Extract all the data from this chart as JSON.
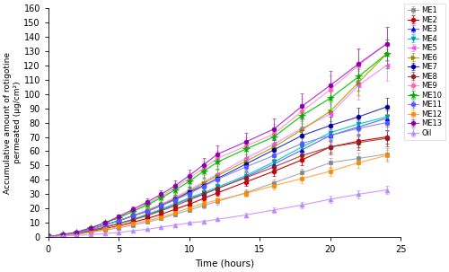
{
  "time_points": [
    0,
    1,
    2,
    3,
    4,
    5,
    6,
    7,
    8,
    9,
    10,
    11,
    12,
    14,
    16,
    18,
    20,
    22,
    24
  ],
  "series": {
    "ME1": {
      "color": "#888888",
      "marker": "s",
      "lc": "#aaaaaa",
      "values": [
        0.5,
        1.2,
        2.0,
        3.5,
        5.0,
        6.5,
        8.5,
        10.5,
        13.0,
        16.0,
        19.0,
        22.0,
        25.0,
        31.0,
        38.0,
        45.0,
        52.0,
        55.0,
        58.0
      ],
      "errors": [
        0.2,
        0.3,
        0.3,
        0.4,
        0.5,
        0.6,
        0.7,
        0.8,
        1.0,
        1.2,
        1.4,
        1.6,
        2.0,
        2.2,
        2.5,
        3.0,
        3.5,
        3.8,
        4.0
      ]
    },
    "ME2": {
      "color": "#cc0000",
      "marker": "o",
      "lc": "#cc0000",
      "values": [
        0.5,
        1.3,
        2.2,
        4.0,
        6.0,
        8.0,
        10.5,
        13.0,
        16.0,
        19.5,
        23.0,
        27.0,
        31.0,
        38.5,
        46.0,
        54.0,
        63.0,
        67.0,
        70.0
      ],
      "errors": [
        0.2,
        0.3,
        0.4,
        0.5,
        0.6,
        0.7,
        0.9,
        1.0,
        1.2,
        1.5,
        1.8,
        2.0,
        2.2,
        2.8,
        3.0,
        3.5,
        4.0,
        4.5,
        5.0
      ]
    },
    "ME3": {
      "color": "#0000dd",
      "marker": "^",
      "lc": "#6666ff",
      "values": [
        0.5,
        1.5,
        2.5,
        4.5,
        7.0,
        9.5,
        12.5,
        15.5,
        19.0,
        23.0,
        27.0,
        30.0,
        34.0,
        42.0,
        51.0,
        61.0,
        71.0,
        77.0,
        83.0
      ],
      "errors": [
        0.2,
        0.3,
        0.4,
        0.5,
        0.7,
        0.8,
        1.0,
        1.2,
        1.5,
        1.8,
        2.0,
        2.3,
        2.5,
        3.0,
        3.5,
        4.0,
        4.5,
        5.0,
        5.5
      ]
    },
    "ME4": {
      "color": "#009999",
      "marker": "v",
      "lc": "#00cccc",
      "values": [
        0.5,
        1.5,
        2.5,
        4.5,
        7.0,
        9.5,
        12.5,
        16.0,
        19.5,
        23.5,
        27.5,
        31.0,
        35.0,
        43.0,
        52.5,
        63.0,
        73.0,
        79.0,
        84.0
      ],
      "errors": [
        0.2,
        0.3,
        0.4,
        0.5,
        0.7,
        0.8,
        1.0,
        1.2,
        1.5,
        1.8,
        2.0,
        2.3,
        2.6,
        3.0,
        3.5,
        4.2,
        4.8,
        5.2,
        5.5
      ]
    },
    "ME5": {
      "color": "#ff44ff",
      "marker": "<",
      "lc": "#ff88ff",
      "values": [
        0.5,
        1.5,
        3.0,
        5.5,
        8.5,
        11.5,
        15.0,
        19.0,
        23.0,
        28.0,
        33.0,
        38.5,
        44.0,
        55.0,
        65.0,
        76.0,
        86.0,
        106.0,
        120.0
      ],
      "errors": [
        0.2,
        0.3,
        0.5,
        0.7,
        0.9,
        1.2,
        1.5,
        1.8,
        2.2,
        2.5,
        3.0,
        3.5,
        4.0,
        5.0,
        6.0,
        7.0,
        8.0,
        10.0,
        11.0
      ]
    },
    "ME6": {
      "color": "#888800",
      "marker": ">",
      "lc": "#aaaa00",
      "values": [
        0.5,
        1.5,
        3.0,
        5.5,
        8.5,
        11.5,
        15.0,
        18.5,
        22.5,
        27.0,
        32.0,
        37.5,
        43.0,
        53.0,
        63.0,
        75.0,
        88.0,
        108.0,
        128.0
      ],
      "errors": [
        0.2,
        0.3,
        0.5,
        0.7,
        0.9,
        1.2,
        1.5,
        1.8,
        2.0,
        2.5,
        3.0,
        3.5,
        4.0,
        4.5,
        5.0,
        6.0,
        7.0,
        9.0,
        10.0
      ]
    },
    "ME7": {
      "color": "#000099",
      "marker": "o",
      "lc": "#3333bb",
      "values": [
        0.5,
        1.5,
        3.0,
        5.5,
        8.5,
        11.5,
        15.0,
        18.0,
        22.0,
        26.5,
        31.5,
        36.0,
        41.0,
        51.0,
        61.0,
        71.0,
        78.0,
        84.0,
        91.0
      ],
      "errors": [
        0.2,
        0.3,
        0.5,
        0.7,
        0.9,
        1.2,
        1.4,
        1.7,
        2.0,
        2.4,
        2.8,
        3.2,
        3.6,
        4.2,
        4.8,
        5.5,
        6.0,
        6.2,
        6.5
      ]
    },
    "ME8": {
      "color": "#882222",
      "marker": "o",
      "lc": "#aa4444",
      "values": [
        0.5,
        1.3,
        2.5,
        4.5,
        7.0,
        9.5,
        12.0,
        15.0,
        18.5,
        22.0,
        26.0,
        30.0,
        34.0,
        41.5,
        49.0,
        57.0,
        63.0,
        66.0,
        69.0
      ],
      "errors": [
        0.2,
        0.3,
        0.4,
        0.6,
        0.8,
        1.0,
        1.2,
        1.5,
        1.8,
        2.0,
        2.3,
        2.7,
        3.0,
        3.5,
        4.0,
        4.5,
        5.0,
        5.2,
        5.5
      ]
    },
    "ME9": {
      "color": "#ff66aa",
      "marker": "o",
      "lc": "#ff99cc",
      "values": [
        0.5,
        1.8,
        3.5,
        6.5,
        10.0,
        14.0,
        18.5,
        23.5,
        28.5,
        34.5,
        41.0,
        48.0,
        55.0,
        63.5,
        72.0,
        88.0,
        103.0,
        120.0,
        135.0
      ],
      "errors": [
        0.2,
        0.4,
        0.6,
        0.9,
        1.2,
        1.5,
        1.9,
        2.3,
        2.8,
        3.4,
        4.0,
        4.7,
        5.5,
        6.0,
        7.0,
        8.5,
        10.0,
        11.0,
        12.0
      ]
    },
    "ME10": {
      "color": "#00aa00",
      "marker": "*",
      "lc": "#00cc00",
      "values": [
        0.5,
        1.8,
        3.5,
        6.5,
        10.0,
        13.5,
        18.0,
        22.5,
        27.5,
        33.0,
        39.0,
        46.0,
        52.5,
        61.5,
        70.0,
        85.0,
        97.0,
        112.0,
        128.0
      ],
      "errors": [
        0.2,
        0.4,
        0.6,
        0.9,
        1.2,
        1.5,
        1.9,
        2.3,
        2.8,
        3.2,
        3.8,
        4.5,
        5.0,
        5.5,
        6.0,
        7.5,
        8.5,
        9.5,
        10.0
      ]
    },
    "ME11": {
      "color": "#5555ff",
      "marker": "o",
      "lc": "#8888ff",
      "values": [
        0.5,
        1.5,
        3.0,
        5.5,
        8.5,
        11.5,
        15.0,
        18.0,
        22.0,
        26.0,
        30.5,
        35.5,
        40.5,
        49.0,
        57.0,
        65.5,
        71.0,
        76.0,
        80.0
      ],
      "errors": [
        0.2,
        0.3,
        0.5,
        0.7,
        0.9,
        1.1,
        1.4,
        1.7,
        2.0,
        2.3,
        2.7,
        3.1,
        3.6,
        4.0,
        4.5,
        5.0,
        5.5,
        5.8,
        6.0
      ]
    },
    "ME12": {
      "color": "#ff8800",
      "marker": "s",
      "lc": "#ffaa44",
      "values": [
        0.5,
        1.2,
        2.0,
        3.5,
        5.5,
        7.5,
        9.5,
        11.5,
        14.0,
        17.0,
        20.5,
        23.5,
        26.0,
        30.5,
        36.0,
        41.0,
        46.0,
        52.0,
        57.0
      ],
      "errors": [
        0.2,
        0.3,
        0.3,
        0.4,
        0.5,
        0.6,
        0.8,
        0.9,
        1.1,
        1.3,
        1.6,
        1.8,
        2.0,
        2.3,
        2.6,
        3.0,
        3.3,
        3.7,
        4.0
      ]
    },
    "ME13": {
      "color": "#8800aa",
      "marker": "o",
      "lc": "#aa33cc",
      "values": [
        0.5,
        1.8,
        3.5,
        6.5,
        10.0,
        14.5,
        19.5,
        24.5,
        30.0,
        36.0,
        43.0,
        50.5,
        58.0,
        66.5,
        75.5,
        91.5,
        106.0,
        121.0,
        135.0
      ],
      "errors": [
        0.2,
        0.4,
        0.6,
        0.9,
        1.2,
        1.6,
        2.0,
        2.5,
        3.0,
        3.6,
        4.3,
        5.0,
        5.8,
        6.5,
        7.5,
        9.0,
        10.0,
        11.0,
        11.5
      ]
    },
    "Oil": {
      "color": "#bb88ff",
      "marker": "^",
      "lc": "#cc99ff",
      "values": [
        0.5,
        0.8,
        1.2,
        1.8,
        2.5,
        3.3,
        4.5,
        5.5,
        7.0,
        8.5,
        10.0,
        11.0,
        12.5,
        15.5,
        19.0,
        22.5,
        26.5,
        30.0,
        33.0
      ],
      "errors": [
        0.1,
        0.2,
        0.2,
        0.3,
        0.3,
        0.4,
        0.5,
        0.6,
        0.7,
        0.8,
        0.9,
        1.0,
        1.1,
        1.4,
        1.7,
        2.0,
        2.3,
        2.7,
        3.0
      ]
    }
  },
  "xlim": [
    0,
    25
  ],
  "ylim": [
    0,
    160
  ],
  "xlabel": "Time (hours)",
  "ylabel": "Accumulative amount of rotigotine\npermeated (μg/cm²)",
  "xticks": [
    0,
    5,
    10,
    15,
    20,
    25
  ],
  "yticks": [
    0,
    10,
    20,
    30,
    40,
    50,
    60,
    70,
    80,
    90,
    100,
    110,
    120,
    130,
    140,
    150,
    160
  ],
  "markersize": 3.5,
  "linewidth": 0.8,
  "figsize": [
    5.0,
    3.03
  ],
  "dpi": 100
}
